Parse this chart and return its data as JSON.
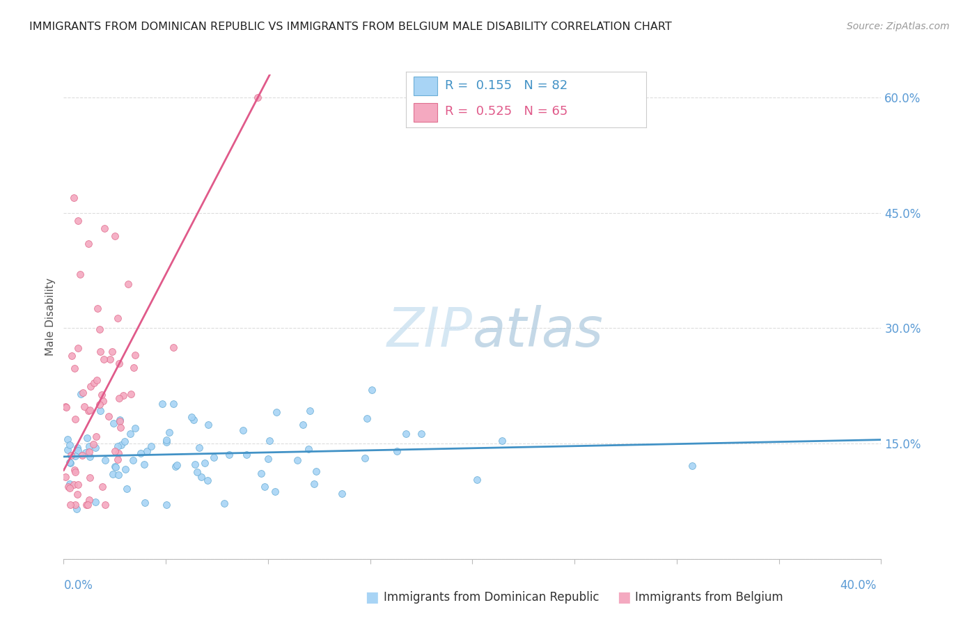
{
  "title": "IMMIGRANTS FROM DOMINICAN REPUBLIC VS IMMIGRANTS FROM BELGIUM MALE DISABILITY CORRELATION CHART",
  "source": "Source: ZipAtlas.com",
  "ylabel": "Male Disability",
  "xmin": 0.0,
  "xmax": 0.4,
  "ymin": 0.0,
  "ymax": 0.63,
  "legend1_r": "0.155",
  "legend1_n": "82",
  "legend2_r": "0.525",
  "legend2_n": "65",
  "scatter1_color": "#a8d4f5",
  "scatter1_edge": "#6baed6",
  "scatter2_color": "#f4a9c0",
  "scatter2_edge": "#e07090",
  "trendline1_color": "#4292c6",
  "trendline2_color": "#e05a8a",
  "watermark_color": "#cce0f5",
  "background_color": "#ffffff",
  "grid_color": "#dddddd",
  "title_color": "#222222",
  "right_axis_color": "#5b9bd5",
  "ytick_vals": [
    0.0,
    0.15,
    0.3,
    0.45,
    0.6
  ],
  "ytick_labels": [
    "",
    "15.0%",
    "30.0%",
    "45.0%",
    "60.0%"
  ]
}
